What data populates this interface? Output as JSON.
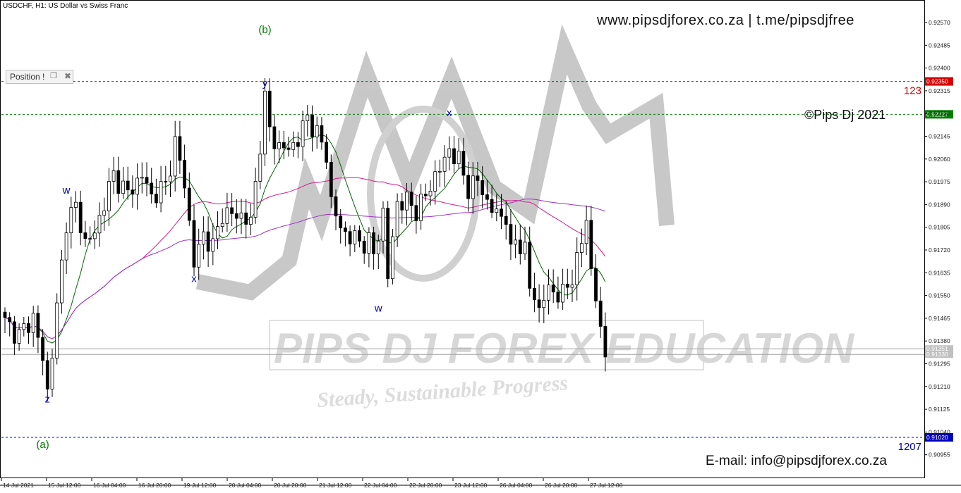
{
  "header": {
    "title": "USDCHF, H1:  US Dollar vs Swiss Franc",
    "links": "www.pipsdjforex.co.za  |  t.me/pipsdjfree",
    "copyright": "©Pips Dj 2021",
    "email": "E-mail: info@pipsdjforex.co.za"
  },
  "position_panel": {
    "label": "Position !"
  },
  "watermark": {
    "name": "PIPS DJ FOREX EDUCATION",
    "tagline": "Steady, Sustainable Progress"
  },
  "colors": {
    "sma_fast": "#006400",
    "sma_mid": "#d81b8c",
    "sma_slow": "#9b30c8",
    "level_upper": "#d40000",
    "level_target": "#008000",
    "level_lower": "#0000c0",
    "wave_label": "#0000c0",
    "degree_label": "#008000",
    "candle": "#000000",
    "watermark": "#b0b0b0"
  },
  "chart_data": {
    "type": "candlestick",
    "symbol": "USDCHF",
    "timeframe": "H1",
    "y_range": [
      0.9087,
      0.9262
    ],
    "y_ticks": [
      "0.92570",
      "0.92485",
      "0.92400",
      "0.92315",
      "0.92230",
      "0.92145",
      "0.92060",
      "0.91975",
      "0.91890",
      "0.91805",
      "0.91720",
      "0.91635",
      "0.91550",
      "0.91465",
      "0.91380",
      "0.91295",
      "0.91210",
      "0.91125",
      "0.91040",
      "0.90955"
    ],
    "x_ticks": [
      "14 Jul 2021",
      "15 Jul 12:00",
      "16 Jul 04:00",
      "16 Jul 20:00",
      "19 Jul 12:00",
      "20 Jul 04:00",
      "20 Jul 20:00",
      "21 Jul 12:00",
      "22 Jul 04:00",
      "22 Jul 20:00",
      "23 Jul 12:00",
      "26 Jul 04:00",
      "26 Jul 20:00",
      "27 Jul 12:00"
    ],
    "price_levels": [
      {
        "price": 0.9235,
        "label": "0.92350",
        "text": "123",
        "color": "#d40000"
      },
      {
        "price": 0.92227,
        "label": "0.92227",
        "text": "",
        "color": "#008000"
      },
      {
        "price": 0.9102,
        "label": "0.91020",
        "text": "1207",
        "color": "#0000c0"
      }
    ],
    "current_prices": [
      {
        "price": 0.91351,
        "label": "0.91351"
      },
      {
        "price": 0.9133,
        "label": "0.91330"
      }
    ],
    "wave_labels": [
      {
        "text": "(b)",
        "price": 0.9253,
        "bar": 55,
        "color": "#008000"
      },
      {
        "text": "y",
        "price": 0.9233,
        "bar": 55,
        "color": "#0000c0"
      },
      {
        "text": "w",
        "price": 0.9193,
        "bar": 13,
        "color": "#0000c0"
      },
      {
        "text": "x",
        "price": 0.916,
        "bar": 40,
        "color": "#0000c0"
      },
      {
        "text": "x",
        "price": 0.9222,
        "bar": 94,
        "color": "#0000c0"
      },
      {
        "text": "w",
        "price": 0.9149,
        "bar": 79,
        "color": "#0000c0"
      },
      {
        "text": "z",
        "price": 0.9115,
        "bar": 9,
        "color": "#0000c0"
      },
      {
        "text": "(a)",
        "price": 0.9098,
        "bar": 8,
        "color": "#008000"
      }
    ],
    "anchors": [
      [
        0,
        0.9145
      ],
      [
        3,
        0.914
      ],
      [
        6,
        0.9147
      ],
      [
        8,
        0.9131
      ],
      [
        9,
        0.9119
      ],
      [
        11,
        0.915
      ],
      [
        13,
        0.9183
      ],
      [
        15,
        0.9188
      ],
      [
        17,
        0.9175
      ],
      [
        19,
        0.9178
      ],
      [
        21,
        0.919
      ],
      [
        23,
        0.92
      ],
      [
        26,
        0.9193
      ],
      [
        29,
        0.92
      ],
      [
        31,
        0.9192
      ],
      [
        34,
        0.9196
      ],
      [
        36,
        0.9212
      ],
      [
        38,
        0.9197
      ],
      [
        40,
        0.9167
      ],
      [
        42,
        0.9178
      ],
      [
        44,
        0.9173
      ],
      [
        46,
        0.9186
      ],
      [
        48,
        0.9185
      ],
      [
        50,
        0.9185
      ],
      [
        52,
        0.9182
      ],
      [
        54,
        0.9212
      ],
      [
        55,
        0.9228
      ],
      [
        56,
        0.9217
      ],
      [
        58,
        0.921
      ],
      [
        60,
        0.921
      ],
      [
        62,
        0.9213
      ],
      [
        64,
        0.9222
      ],
      [
        66,
        0.9215
      ],
      [
        68,
        0.9208
      ],
      [
        69,
        0.919
      ],
      [
        71,
        0.918
      ],
      [
        73,
        0.9177
      ],
      [
        75,
        0.9175
      ],
      [
        77,
        0.9175
      ],
      [
        78,
        0.917
      ],
      [
        80,
        0.9186
      ],
      [
        81,
        0.9162
      ],
      [
        83,
        0.919
      ],
      [
        85,
        0.919
      ],
      [
        87,
        0.9187
      ],
      [
        89,
        0.9192
      ],
      [
        91,
        0.92
      ],
      [
        93,
        0.9205
      ],
      [
        94,
        0.921
      ],
      [
        96,
        0.9205
      ],
      [
        98,
        0.9195
      ],
      [
        100,
        0.9198
      ],
      [
        102,
        0.919
      ],
      [
        104,
        0.9185
      ],
      [
        106,
        0.9185
      ],
      [
        107,
        0.917
      ],
      [
        108,
        0.9176
      ],
      [
        110,
        0.9172
      ],
      [
        111,
        0.9158
      ],
      [
        113,
        0.915
      ],
      [
        114,
        0.9155
      ],
      [
        116,
        0.9157
      ],
      [
        118,
        0.9155
      ],
      [
        120,
        0.9162
      ],
      [
        122,
        0.9175
      ],
      [
        123,
        0.9183
      ],
      [
        124,
        0.9165
      ],
      [
        125,
        0.9155
      ],
      [
        126,
        0.914
      ],
      [
        127,
        0.9133
      ]
    ],
    "volatility": 0.00045,
    "bar_count": 128,
    "moving_averages": [
      {
        "period": 8,
        "color": "#006400"
      },
      {
        "period": 30,
        "color": "#d81b8c"
      },
      {
        "period": 100,
        "color": "#9b30c8"
      }
    ]
  }
}
